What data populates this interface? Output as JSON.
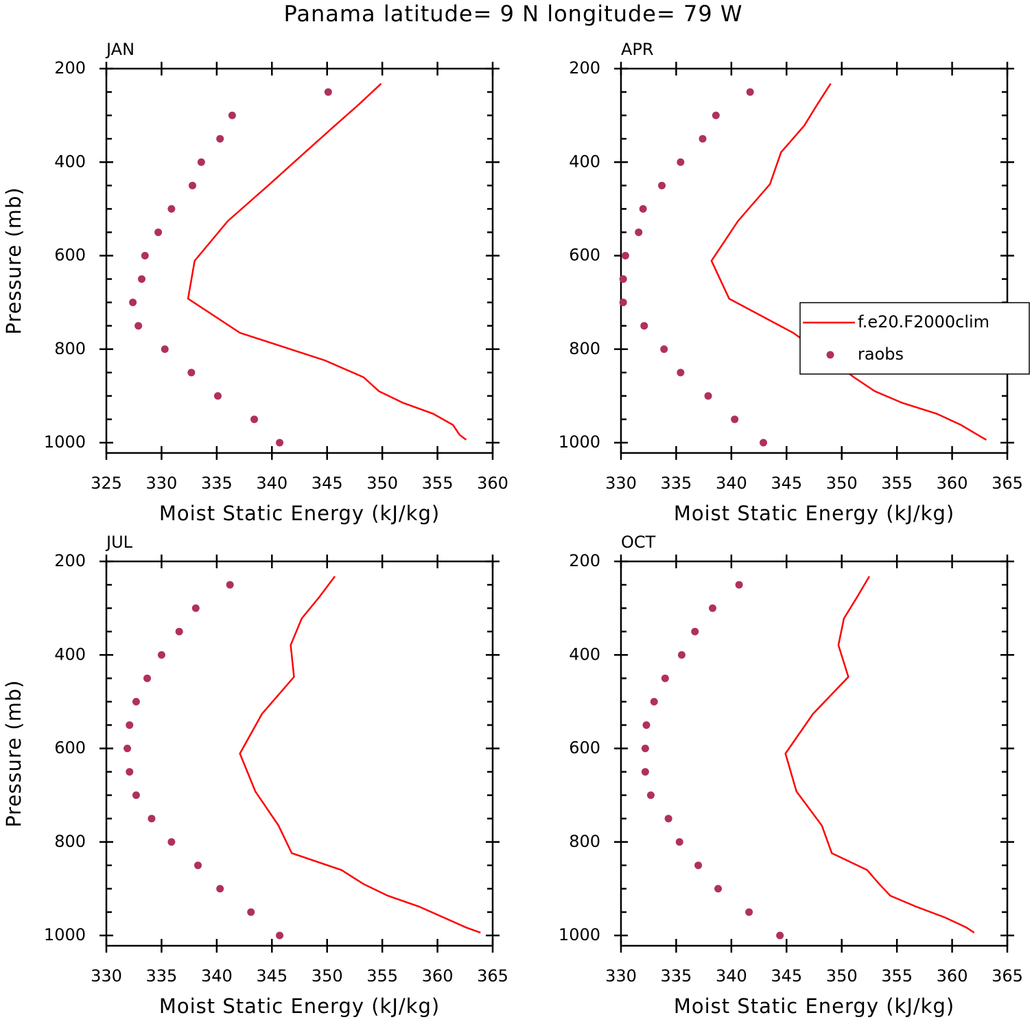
{
  "title": "Panama  latitude= 9 N longitude= 79 W",
  "chart_data": [
    {
      "type": "profile",
      "title": "JAN",
      "xlabel": "Moist Static Energy (kJ/kg)",
      "ylabel": "Pressure (mb)",
      "xlim": [
        325,
        360
      ],
      "xticks": [
        325,
        330,
        335,
        340,
        345,
        350,
        355,
        360
      ],
      "ylim": [
        1022,
        200
      ],
      "yticks": [
        200,
        400,
        600,
        800,
        1000
      ],
      "yminorticks": [
        250,
        300,
        350,
        450,
        500,
        550,
        650,
        700,
        750,
        850,
        900,
        950
      ],
      "series": [
        {
          "kind": "line",
          "color": "#ff0000",
          "x": [
            349.9,
            347.9,
            345.7,
            343.0,
            339.8,
            336.0,
            333.0,
            332.4,
            337.1,
            344.8,
            348.3,
            349.7,
            351.9,
            354.6,
            356.4,
            357.0,
            357.6
          ],
          "y": [
            232,
            276,
            322,
            379,
            447,
            526,
            611,
            692,
            765,
            824,
            860,
            890,
            915,
            938,
            962,
            983,
            994
          ]
        },
        {
          "kind": "scatter",
          "color": "#b03060",
          "x": [
            345.1,
            336.4,
            335.3,
            333.6,
            332.8,
            330.9,
            329.7,
            328.5,
            328.2,
            327.4,
            327.9,
            330.3,
            332.7,
            335.1,
            338.4,
            340.7
          ],
          "y": [
            250,
            300,
            350,
            400,
            450,
            500,
            550,
            600,
            650,
            700,
            750,
            800,
            850,
            900,
            950,
            1000
          ]
        }
      ]
    },
    {
      "type": "profile",
      "title": "APR",
      "xlabel": "Moist Static Energy (kJ/kg)",
      "legend": "center right",
      "xlim": [
        330,
        365
      ],
      "xticks": [
        330,
        335,
        340,
        345,
        350,
        355,
        360,
        365
      ],
      "ylim": [
        1022,
        200
      ],
      "yticks": [
        200,
        400,
        600,
        800,
        1000
      ],
      "yminorticks": [
        250,
        300,
        350,
        450,
        500,
        550,
        650,
        700,
        750,
        850,
        900,
        950
      ],
      "series": [
        {
          "kind": "line",
          "name": "f.e20.F2000clim",
          "color": "#ff0000",
          "x": [
            349.0,
            347.8,
            346.6,
            344.5,
            343.5,
            340.6,
            338.2,
            339.8,
            345.6,
            349.1,
            351.1,
            353.0,
            355.5,
            358.6,
            360.8,
            362.3,
            363.1
          ],
          "y": [
            232,
            276,
            322,
            379,
            447,
            526,
            611,
            692,
            765,
            824,
            860,
            890,
            915,
            938,
            962,
            983,
            994
          ]
        },
        {
          "kind": "scatter",
          "name": "raobs",
          "color": "#b03060",
          "x": [
            341.7,
            338.6,
            337.4,
            335.4,
            333.7,
            332.0,
            331.6,
            330.4,
            330.2,
            330.2,
            332.1,
            333.9,
            335.4,
            337.9,
            340.3,
            342.9
          ],
          "y": [
            250,
            300,
            350,
            400,
            450,
            500,
            550,
            600,
            650,
            700,
            750,
            800,
            850,
            900,
            950,
            1000
          ]
        }
      ]
    },
    {
      "type": "profile",
      "title": "JUL",
      "xlabel": "Moist Static Energy (kJ/kg)",
      "ylabel": "Pressure (mb)",
      "xlim": [
        330,
        365
      ],
      "xticks": [
        330,
        335,
        340,
        345,
        350,
        355,
        360,
        365
      ],
      "ylim": [
        1022,
        200
      ],
      "yticks": [
        200,
        400,
        600,
        800,
        1000
      ],
      "yminorticks": [
        250,
        300,
        350,
        450,
        500,
        550,
        650,
        700,
        750,
        850,
        900,
        950
      ],
      "series": [
        {
          "kind": "line",
          "color": "#ff0000",
          "x": [
            350.7,
            349.3,
            347.7,
            346.7,
            347.0,
            344.1,
            342.1,
            343.5,
            345.6,
            346.8,
            351.3,
            353.3,
            355.5,
            358.3,
            360.6,
            362.6,
            363.9
          ],
          "y": [
            232,
            276,
            322,
            379,
            447,
            526,
            611,
            692,
            765,
            824,
            860,
            890,
            915,
            938,
            962,
            983,
            994
          ]
        },
        {
          "kind": "scatter",
          "color": "#b03060",
          "x": [
            341.2,
            338.1,
            336.6,
            335.0,
            333.7,
            332.7,
            332.1,
            331.9,
            332.1,
            332.7,
            334.1,
            335.9,
            338.3,
            340.3,
            343.1,
            345.7
          ],
          "y": [
            250,
            300,
            350,
            400,
            450,
            500,
            550,
            600,
            650,
            700,
            750,
            800,
            850,
            900,
            950,
            1000
          ]
        }
      ]
    },
    {
      "type": "profile",
      "title": "OCT",
      "xlabel": "Moist Static Energy (kJ/kg)",
      "xlim": [
        330,
        365
      ],
      "xticks": [
        330,
        335,
        340,
        345,
        350,
        355,
        360,
        365
      ],
      "ylim": [
        1022,
        200
      ],
      "yticks": [
        200,
        400,
        600,
        800,
        1000
      ],
      "yminorticks": [
        250,
        300,
        350,
        450,
        500,
        550,
        650,
        700,
        750,
        850,
        900,
        950
      ],
      "series": [
        {
          "kind": "line",
          "color": "#ff0000",
          "x": [
            352.5,
            351.4,
            350.2,
            349.7,
            350.6,
            347.4,
            344.9,
            345.9,
            348.2,
            349.1,
            352.3,
            353.4,
            354.4,
            356.7,
            359.4,
            361.3,
            362.0
          ],
          "y": [
            232,
            276,
            322,
            379,
            447,
            526,
            611,
            692,
            765,
            824,
            860,
            890,
            915,
            938,
            962,
            983,
            994
          ]
        },
        {
          "kind": "scatter",
          "color": "#b03060",
          "x": [
            340.7,
            338.3,
            336.7,
            335.5,
            334.0,
            333.0,
            332.3,
            332.2,
            332.2,
            332.7,
            334.3,
            335.3,
            337.0,
            338.8,
            341.6,
            344.4
          ],
          "y": [
            250,
            300,
            350,
            400,
            450,
            500,
            550,
            600,
            650,
            700,
            750,
            800,
            850,
            900,
            950,
            1000
          ]
        }
      ]
    }
  ]
}
